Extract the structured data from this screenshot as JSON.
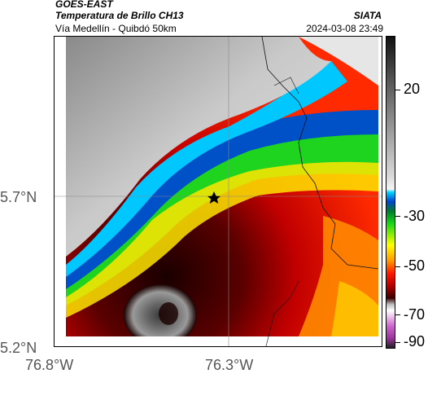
{
  "header": {
    "satellite": "GOES-EAST",
    "product": "Temperatura de Brillo CH13",
    "region": "Vía Medellín - Quibdó 50km",
    "organization": "SIATA",
    "datetime": "2024-03-08 23:49"
  },
  "axes": {
    "lat_labels": [
      "5.7°N",
      "5.2°N"
    ],
    "lon_labels": [
      "76.8°W",
      "76.3°W"
    ]
  },
  "colorbar": {
    "ticks": [
      "20",
      "-30",
      "-50",
      "-70",
      "-90"
    ]
  },
  "map": {
    "marker_icon": "star-icon"
  }
}
